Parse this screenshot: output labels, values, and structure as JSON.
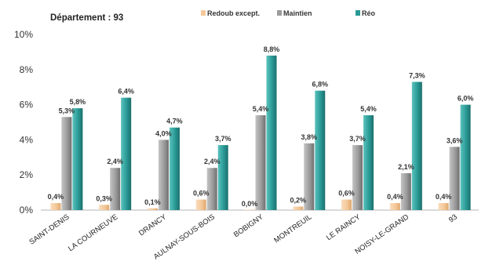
{
  "chart_data": {
    "type": "bar",
    "title": "Département : 93",
    "categories": [
      "SAINT-DENIS",
      "LA COURNEUVE",
      "DRANCY",
      "AULNAY-SOUS-BOIS",
      "BOBIGNY",
      "MONTREUIL",
      "LE RAINCY",
      "NOISY-LE-GRAND",
      "93"
    ],
    "series": [
      {
        "name": "Redoub except.",
        "color": "#f4c89a",
        "values": [
          0.4,
          0.3,
          0.1,
          0.6,
          0.0,
          0.2,
          0.6,
          0.4,
          0.4
        ],
        "labels": [
          "0,4%",
          "0,3%",
          "0,1%",
          "0,6%",
          "0,0%",
          "0,2%",
          "0,6%",
          "0,4%",
          "0,4%"
        ]
      },
      {
        "name": "Maintien",
        "color": "#9c9c9c",
        "values": [
          5.3,
          2.4,
          4.0,
          2.4,
          5.4,
          3.8,
          3.7,
          2.1,
          3.6
        ],
        "labels": [
          "5,3%",
          "2,4%",
          "4,0%",
          "2,4%",
          "5,4%",
          "3,8%",
          "3,7%",
          "2,1%",
          "3,6%"
        ]
      },
      {
        "name": "Réo",
        "color": "#2a9a96",
        "values": [
          5.8,
          6.4,
          4.7,
          3.7,
          8.8,
          6.8,
          5.4,
          7.3,
          6.0
        ],
        "labels": [
          "5,8%",
          "6,4%",
          "4,7%",
          "3,7%",
          "8,8%",
          "6,8%",
          "5,4%",
          "7,3%",
          "6,0%"
        ]
      }
    ],
    "ylim": [
      0,
      10
    ],
    "yticks": [
      "0%",
      "2%",
      "4%",
      "6%",
      "8%",
      "10%"
    ],
    "xlabel": "",
    "ylabel": "",
    "grid": false,
    "legend": "top"
  }
}
